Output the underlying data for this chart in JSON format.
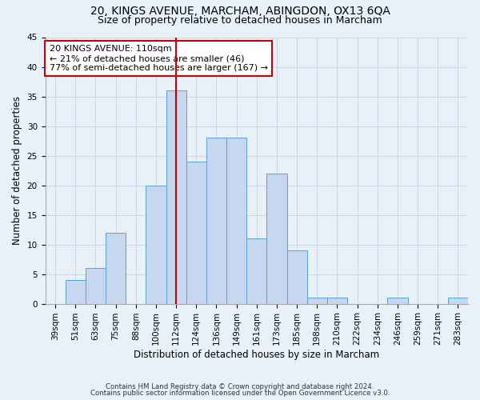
{
  "title1": "20, KINGS AVENUE, MARCHAM, ABINGDON, OX13 6QA",
  "title2": "Size of property relative to detached houses in Marcham",
  "xlabel": "Distribution of detached houses by size in Marcham",
  "ylabel": "Number of detached properties",
  "footnote1": "Contains HM Land Registry data © Crown copyright and database right 2024.",
  "footnote2": "Contains public sector information licensed under the Open Government Licence v3.0.",
  "categories": [
    "39sqm",
    "51sqm",
    "63sqm",
    "75sqm",
    "88sqm",
    "100sqm",
    "112sqm",
    "124sqm",
    "136sqm",
    "149sqm",
    "161sqm",
    "173sqm",
    "185sqm",
    "198sqm",
    "210sqm",
    "222sqm",
    "234sqm",
    "246sqm",
    "259sqm",
    "271sqm",
    "283sqm"
  ],
  "values": [
    0,
    4,
    6,
    12,
    0,
    20,
    36,
    24,
    28,
    28,
    11,
    22,
    9,
    1,
    1,
    0,
    0,
    1,
    0,
    0,
    1
  ],
  "bar_color": "#c5d8f0",
  "bar_edge_color": "#5a9fd4",
  "vline_color": "#cc0000",
  "vline_x": 6.5,
  "annotation_text": "20 KINGS AVENUE: 110sqm\n← 21% of detached houses are smaller (46)\n77% of semi-detached houses are larger (167) →",
  "annotation_box_color": "#ffffff",
  "annotation_box_edge_color": "#cc0000",
  "ylim": [
    0,
    45
  ],
  "yticks": [
    0,
    5,
    10,
    15,
    20,
    25,
    30,
    35,
    40,
    45
  ],
  "grid_color": "#c8d8eb",
  "bg_color": "#e8f0f8",
  "title_fontsize": 10,
  "subtitle_fontsize": 9,
  "axis_label_fontsize": 8.5,
  "tick_fontsize": 7.5,
  "annot_fontsize": 8
}
